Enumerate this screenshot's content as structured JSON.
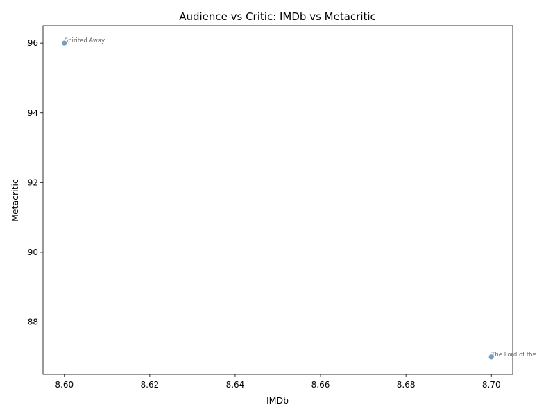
{
  "chart_data": {
    "type": "scatter",
    "title": "Audience vs Critic: IMDb vs Metacritic",
    "xlabel": "IMDb",
    "ylabel": "Metacritic",
    "xlim": [
      8.595,
      8.705
    ],
    "ylim": [
      86.5,
      96.5
    ],
    "xticks": [
      "8.60",
      "8.62",
      "8.64",
      "8.66",
      "8.68",
      "8.70"
    ],
    "yticks": [
      "88",
      "90",
      "92",
      "94",
      "96"
    ],
    "grid": false,
    "point_color": "#5b8db8",
    "points": [
      {
        "label": "Spirited Away",
        "x": 8.6,
        "y": 96
      },
      {
        "label": "The Lord of the",
        "x": 8.7,
        "y": 87
      }
    ]
  }
}
